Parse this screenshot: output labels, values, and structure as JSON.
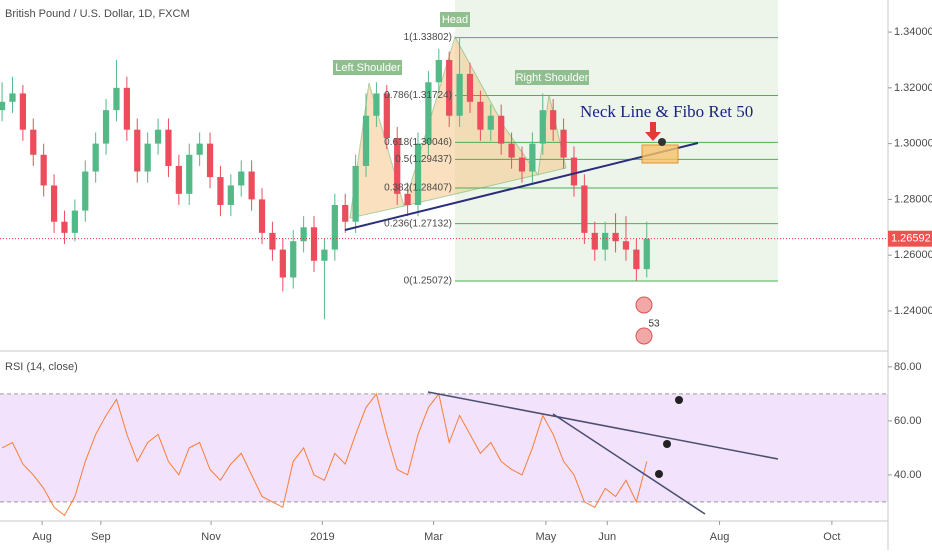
{
  "chart_data": [
    {
      "type": "candlestick",
      "title": "British Pound / U.S. Dollar, 1D, FXCM",
      "up_color": "#53b987",
      "down_color": "#eb4d5c",
      "xlim": [
        -0.2,
        85.2
      ],
      "ylim": [
        1.226,
        1.3515
      ],
      "yticks": [
        {
          "value": 1.24,
          "label": "1.24000"
        },
        {
          "value": 1.26,
          "label": "1.26000"
        },
        {
          "value": 1.28,
          "label": "1.28000"
        },
        {
          "value": 1.3,
          "label": "1.30000"
        },
        {
          "value": 1.32,
          "label": "1.32000"
        },
        {
          "value": 1.34,
          "label": "1.34000"
        }
      ],
      "last_price": {
        "value": 1.26592,
        "label": "1.26592"
      },
      "candles": [
        [
          1.312,
          1.322,
          1.308,
          1.315
        ],
        [
          1.315,
          1.324,
          1.311,
          1.318
        ],
        [
          1.318,
          1.321,
          1.301,
          1.305
        ],
        [
          1.305,
          1.309,
          1.292,
          1.296
        ],
        [
          1.296,
          1.3,
          1.281,
          1.285
        ],
        [
          1.285,
          1.289,
          1.268,
          1.272
        ],
        [
          1.272,
          1.276,
          1.264,
          1.268
        ],
        [
          1.268,
          1.28,
          1.265,
          1.276
        ],
        [
          1.276,
          1.294,
          1.272,
          1.29
        ],
        [
          1.29,
          1.304,
          1.286,
          1.3
        ],
        [
          1.3,
          1.316,
          1.296,
          1.312
        ],
        [
          1.312,
          1.33,
          1.308,
          1.32
        ],
        [
          1.32,
          1.324,
          1.301,
          1.305
        ],
        [
          1.305,
          1.309,
          1.286,
          1.29
        ],
        [
          1.29,
          1.304,
          1.286,
          1.3
        ],
        [
          1.3,
          1.309,
          1.296,
          1.305
        ],
        [
          1.305,
          1.309,
          1.288,
          1.292
        ],
        [
          1.292,
          1.296,
          1.278,
          1.282
        ],
        [
          1.282,
          1.3,
          1.278,
          1.296
        ],
        [
          1.296,
          1.304,
          1.292,
          1.3
        ],
        [
          1.3,
          1.304,
          1.284,
          1.288
        ],
        [
          1.288,
          1.292,
          1.274,
          1.278
        ],
        [
          1.278,
          1.289,
          1.274,
          1.285
        ],
        [
          1.285,
          1.294,
          1.281,
          1.29
        ],
        [
          1.29,
          1.294,
          1.276,
          1.28
        ],
        [
          1.28,
          1.284,
          1.264,
          1.268
        ],
        [
          1.268,
          1.272,
          1.258,
          1.262
        ],
        [
          1.262,
          1.266,
          1.247,
          1.252
        ],
        [
          1.252,
          1.269,
          1.248,
          1.265
        ],
        [
          1.265,
          1.274,
          1.261,
          1.27
        ],
        [
          1.27,
          1.274,
          1.254,
          1.258
        ],
        [
          1.258,
          1.266,
          1.237,
          1.262
        ],
        [
          1.262,
          1.282,
          1.258,
          1.278
        ],
        [
          1.278,
          1.282,
          1.268,
          1.272
        ],
        [
          1.272,
          1.296,
          1.268,
          1.292
        ],
        [
          1.292,
          1.318,
          1.288,
          1.31
        ],
        [
          1.31,
          1.322,
          1.306,
          1.318
        ],
        [
          1.318,
          1.321,
          1.298,
          1.302
        ],
        [
          1.302,
          1.306,
          1.278,
          1.282
        ],
        [
          1.282,
          1.286,
          1.274,
          1.278
        ],
        [
          1.278,
          1.304,
          1.274,
          1.3
        ],
        [
          1.3,
          1.326,
          1.296,
          1.322
        ],
        [
          1.322,
          1.334,
          1.318,
          1.33
        ],
        [
          1.33,
          1.333,
          1.306,
          1.31
        ],
        [
          1.31,
          1.338,
          1.306,
          1.325
        ],
        [
          1.325,
          1.329,
          1.311,
          1.315
        ],
        [
          1.315,
          1.319,
          1.301,
          1.305
        ],
        [
          1.305,
          1.314,
          1.301,
          1.31
        ],
        [
          1.31,
          1.314,
          1.296,
          1.3
        ],
        [
          1.3,
          1.304,
          1.291,
          1.295
        ],
        [
          1.295,
          1.299,
          1.286,
          1.29
        ],
        [
          1.29,
          1.304,
          1.286,
          1.3
        ],
        [
          1.3,
          1.318,
          1.296,
          1.312
        ],
        [
          1.312,
          1.316,
          1.301,
          1.305
        ],
        [
          1.305,
          1.309,
          1.291,
          1.295
        ],
        [
          1.295,
          1.299,
          1.281,
          1.285
        ],
        [
          1.285,
          1.289,
          1.264,
          1.268
        ],
        [
          1.268,
          1.272,
          1.258,
          1.262
        ],
        [
          1.262,
          1.272,
          1.258,
          1.268
        ],
        [
          1.268,
          1.275,
          1.261,
          1.265
        ],
        [
          1.265,
          1.274,
          1.258,
          1.262
        ],
        [
          1.262,
          1.266,
          1.2507,
          1.255
        ],
        [
          1.255,
          1.272,
          1.252,
          1.2659
        ]
      ],
      "fib_levels": [
        {
          "value": 1.33802,
          "label": "1(1.33802)"
        },
        {
          "value": 1.31724,
          "label": "0.786(1.31724)"
        },
        {
          "value": 1.30046,
          "label": "0.618(1.30046)"
        },
        {
          "value": 1.29437,
          "label": "0.5(1.29437)"
        },
        {
          "value": 1.28407,
          "label": "0.382(1.28407)"
        },
        {
          "value": 1.27132,
          "label": "0.236(1.27132)"
        },
        {
          "value": 1.25072,
          "label": "0(1.25072)"
        }
      ],
      "annotations": [
        "Head",
        "Left Shoulder",
        "Right Shoulder",
        "Neck Line & Fibo Ret 50"
      ],
      "badge": "53"
    },
    {
      "type": "line",
      "title": "RSI (14, close)",
      "color": "#f57f3b",
      "xlim": [
        -0.2,
        85.2
      ],
      "ylim": [
        23.3,
        84.4
      ],
      "yticks": [
        {
          "value": 40,
          "label": "40.00"
        },
        {
          "value": 60,
          "label": "60.00"
        },
        {
          "value": 80,
          "label": "80.00"
        }
      ],
      "bands": [
        70,
        30
      ],
      "xticks": [
        {
          "value": 3.85,
          "label": "Aug"
        },
        {
          "value": 9.5,
          "label": "Sep"
        },
        {
          "value": 20.1,
          "label": "Nov"
        },
        {
          "value": 30.8,
          "label": "2019"
        },
        {
          "value": 41.5,
          "label": "Mar"
        },
        {
          "value": 52.3,
          "label": "May"
        },
        {
          "value": 58.2,
          "label": "Jun"
        },
        {
          "value": 69,
          "label": "Aug"
        },
        {
          "value": 79.8,
          "label": "Oct"
        }
      ],
      "values": [
        50,
        52,
        44,
        40,
        35,
        28,
        25,
        32,
        45,
        55,
        62,
        68,
        55,
        45,
        52,
        55,
        45,
        40,
        50,
        52,
        42,
        38,
        44,
        48,
        40,
        32,
        30,
        28,
        45,
        50,
        40,
        38,
        48,
        44,
        55,
        65,
        70,
        55,
        42,
        40,
        55,
        65,
        70,
        52,
        62,
        55,
        48,
        52,
        45,
        42,
        40,
        50,
        62,
        55,
        45,
        40,
        30,
        28,
        35,
        32,
        38,
        30,
        45
      ]
    }
  ]
}
